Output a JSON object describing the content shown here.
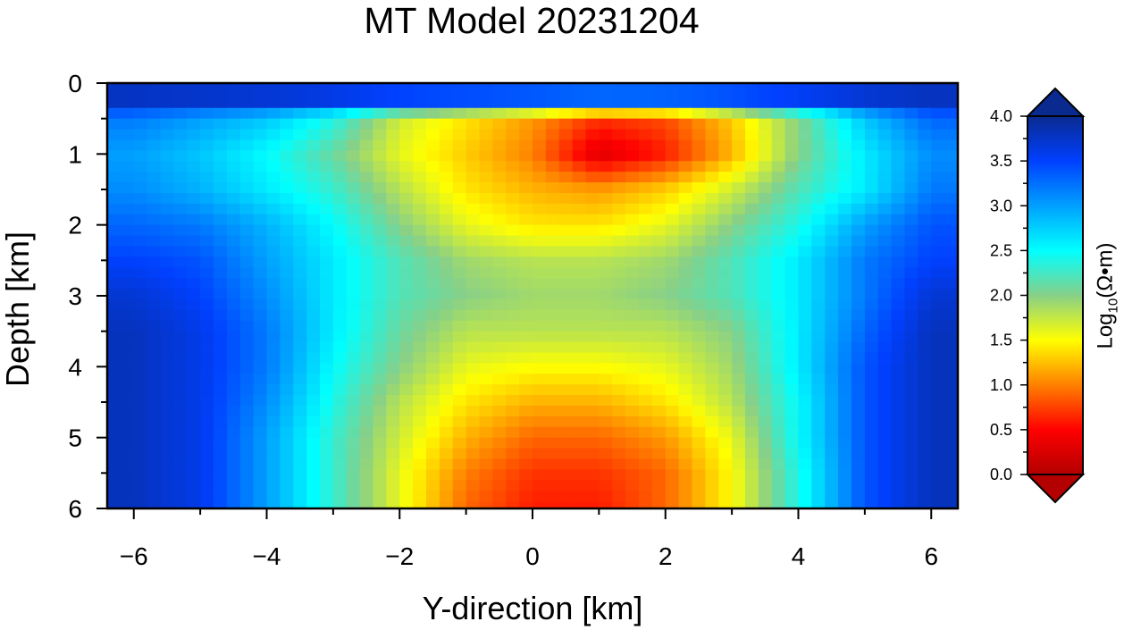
{
  "chart_data": {
    "type": "heatmap",
    "title": "MT Model 20231204",
    "xlabel": "Y-direction [km]",
    "ylabel": "Depth [km]",
    "xlim": [
      -6.4,
      6.4
    ],
    "ylim": [
      6,
      0
    ],
    "x_ticks": [
      -6,
      -4,
      -2,
      0,
      2,
      4,
      6
    ],
    "x_tick_labels": [
      "−6",
      "−4",
      "−2",
      "0",
      "2",
      "4",
      "6"
    ],
    "y_ticks": [
      0,
      1,
      2,
      3,
      4,
      5,
      6
    ],
    "y_tick_labels": [
      "0",
      "1",
      "2",
      "3",
      "4",
      "5",
      "6"
    ],
    "colorbar": {
      "label_prefix": "Log",
      "label_sub": "10",
      "label_suffix": "(Ω•m)",
      "range": [
        0.0,
        4.0
      ],
      "ticks": [
        0.0,
        0.5,
        1.0,
        1.5,
        2.0,
        2.5,
        3.0,
        3.5,
        4.0
      ],
      "tick_labels": [
        "0.0",
        "0.5",
        "1.0",
        "1.5",
        "2.0",
        "2.5",
        "3.0",
        "3.5",
        "4.0"
      ],
      "extend": "both",
      "colormap": [
        {
          "v": 0.0,
          "color": "#b30000"
        },
        {
          "v": 0.5,
          "color": "#ff0000"
        },
        {
          "v": 1.0,
          "color": "#ff8000"
        },
        {
          "v": 1.5,
          "color": "#ffff00"
        },
        {
          "v": 2.0,
          "color": "#88d088"
        },
        {
          "v": 2.5,
          "color": "#00ffff"
        },
        {
          "v": 3.0,
          "color": "#00a0ff"
        },
        {
          "v": 3.5,
          "color": "#0040ff"
        },
        {
          "v": 4.0,
          "color": "#0a2a90"
        }
      ]
    },
    "grid_x": [
      -6,
      -5,
      -4,
      -3,
      -2,
      -1,
      0,
      1,
      2,
      3,
      4,
      5,
      6
    ],
    "grid_y": [
      0.1,
      0.5,
      1,
      1.5,
      2,
      2.5,
      3,
      3.5,
      4,
      4.5,
      5,
      5.5,
      6
    ],
    "values": [
      [
        3.9,
        3.9,
        3.9,
        3.9,
        3.9,
        3.9,
        3.9,
        3.9,
        3.9,
        3.9,
        3.9,
        3.9,
        3.9
      ],
      [
        3.2,
        3.0,
        2.8,
        2.4,
        1.7,
        1.4,
        1.1,
        0.7,
        0.8,
        1.3,
        2.0,
        2.8,
        3.3
      ],
      [
        3.0,
        2.8,
        2.5,
        2.1,
        1.6,
        1.3,
        1.0,
        0.3,
        0.6,
        1.2,
        2.0,
        2.6,
        3.1
      ],
      [
        3.1,
        2.9,
        2.6,
        2.3,
        1.8,
        1.4,
        1.2,
        1.1,
        1.3,
        1.7,
        2.2,
        2.6,
        3.2
      ],
      [
        3.3,
        3.2,
        2.9,
        2.5,
        2.0,
        1.6,
        1.4,
        1.4,
        1.6,
        2.0,
        2.4,
        3.0,
        3.4
      ],
      [
        3.5,
        3.4,
        3.0,
        2.6,
        2.2,
        1.9,
        1.8,
        1.8,
        1.9,
        2.2,
        2.6,
        3.2,
        3.5
      ],
      [
        3.7,
        3.5,
        3.1,
        2.6,
        2.2,
        2.0,
        1.9,
        1.9,
        2.0,
        2.2,
        2.6,
        3.2,
        3.7
      ],
      [
        3.8,
        3.6,
        3.2,
        2.6,
        2.1,
        1.8,
        1.8,
        1.8,
        1.8,
        2.0,
        2.6,
        3.3,
        3.8
      ],
      [
        3.8,
        3.6,
        3.2,
        2.5,
        2.0,
        1.6,
        1.5,
        1.5,
        1.6,
        1.9,
        2.6,
        3.4,
        3.8
      ],
      [
        3.8,
        3.6,
        3.1,
        2.4,
        1.8,
        1.4,
        1.2,
        1.2,
        1.4,
        1.8,
        2.5,
        3.4,
        3.8
      ],
      [
        3.8,
        3.6,
        3.0,
        2.3,
        1.7,
        1.2,
        0.9,
        0.9,
        1.1,
        1.6,
        2.5,
        3.4,
        3.8
      ],
      [
        3.8,
        3.6,
        3.0,
        2.3,
        1.6,
        1.0,
        0.7,
        0.7,
        0.9,
        1.5,
        2.4,
        3.4,
        3.8
      ],
      [
        3.8,
        3.6,
        3.0,
        2.3,
        1.6,
        0.9,
        0.6,
        0.6,
        0.9,
        1.5,
        2.4,
        3.4,
        3.8
      ]
    ]
  }
}
